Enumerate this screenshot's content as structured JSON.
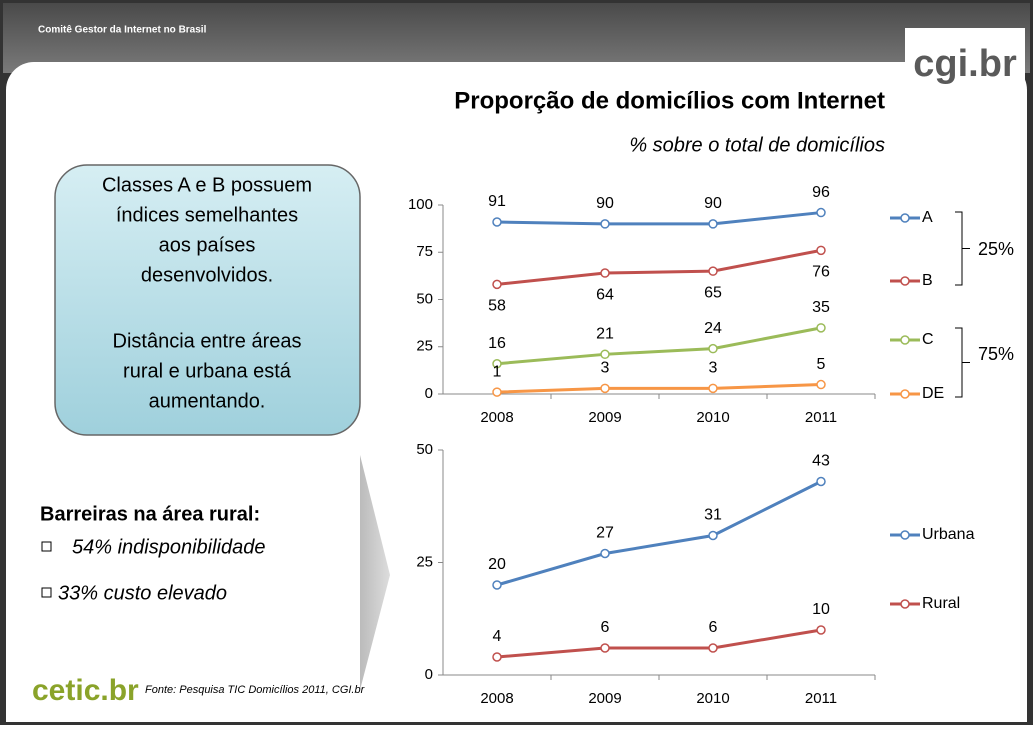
{
  "header": {
    "org": "Comitê Gestor da Internet no Brasil",
    "logo": "cgi.br",
    "title": "Proporção de domicílios com Internet",
    "subtitle": "% sobre o total de domicílios"
  },
  "callout": {
    "lines": [
      "Classes A e B possuem",
      "índices semelhantes",
      "aos países",
      "desenvolvidos.",
      "Distância entre áreas",
      "rural e urbana está",
      "aumentando."
    ]
  },
  "barriers": {
    "heading": "Barreiras na área rural:",
    "items": [
      "54% indisponibilidade",
      "33% custo elevado"
    ]
  },
  "footer": {
    "logo": "cetic.br",
    "source": "Fonte: Pesquisa TIC Domicílios 2011, CGI.br"
  },
  "chart_data": [
    {
      "type": "line",
      "categories": [
        "2008",
        "2009",
        "2010",
        "2011"
      ],
      "series": [
        {
          "name": "A",
          "color": "#4f81bd",
          "values": [
            91,
            90,
            90,
            96
          ]
        },
        {
          "name": "B",
          "color": "#c0504d",
          "values": [
            58,
            64,
            65,
            76
          ]
        },
        {
          "name": "C",
          "color": "#9bbb59",
          "values": [
            16,
            21,
            24,
            35
          ]
        },
        {
          "name": "DE",
          "color": "#f79646",
          "values": [
            1,
            3,
            3,
            5
          ]
        }
      ],
      "ylim": [
        0,
        100
      ],
      "yticks": [
        0,
        25,
        50,
        75,
        100
      ],
      "grid": false,
      "annotations": [
        "25%",
        "75%"
      ]
    },
    {
      "type": "line",
      "categories": [
        "2008",
        "2009",
        "2010",
        "2011"
      ],
      "series": [
        {
          "name": "Urbana",
          "color": "#4f81bd",
          "values": [
            20,
            27,
            31,
            43
          ]
        },
        {
          "name": "Rural",
          "color": "#c0504d",
          "values": [
            4,
            6,
            6,
            10
          ]
        }
      ],
      "ylim": [
        0,
        50
      ],
      "yticks": [
        0,
        25,
        50
      ],
      "grid": false
    }
  ]
}
